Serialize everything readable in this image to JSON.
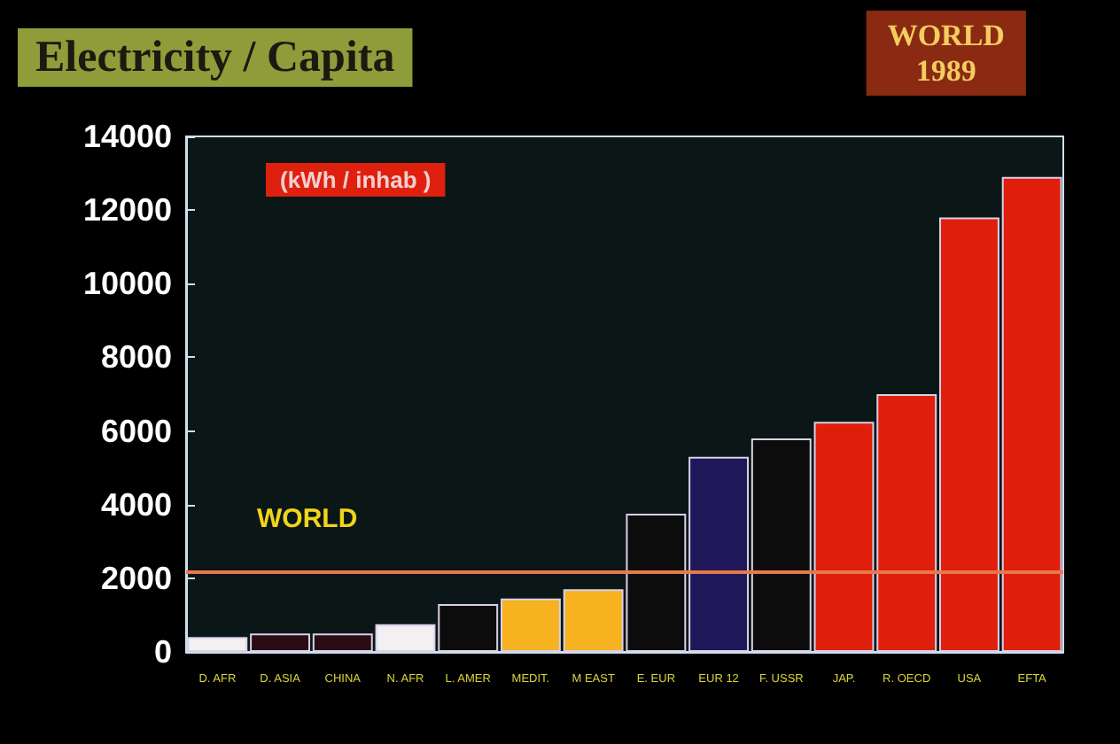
{
  "chart_data": {
    "type": "bar",
    "title": "Electricity / Capita",
    "subtitle": "WORLD\n1989",
    "ylabel": "(kWh / inhab )",
    "categories": [
      "D. AFR",
      "D. ASIA",
      "CHINA",
      "N. AFR",
      "L. AMER",
      "MEDIT.",
      "M EAST",
      "E. EUR",
      "EUR 12",
      "F. USSR",
      "JAP.",
      "R. OECD",
      "USA",
      "EFTA"
    ],
    "values": [
      400,
      500,
      500,
      750,
      1300,
      1450,
      1700,
      3750,
      5300,
      5800,
      6250,
      7000,
      11800,
      12900
    ],
    "colors": [
      "#f2f0f0",
      "#2a0c12",
      "#2a0c12",
      "#f2f0f0",
      "#0c0c0c",
      "#f7b220",
      "#f7b220",
      "#0c0c0c",
      "#1e1858",
      "#0c0c0c",
      "#e01e0c",
      "#e01e0c",
      "#e01e0c",
      "#e01e0c"
    ],
    "ylim": [
      0,
      14000
    ],
    "yticks": [
      0,
      2000,
      4000,
      6000,
      8000,
      10000,
      12000,
      14000
    ],
    "ref_lines": [
      {
        "axis": "y",
        "value": 2200,
        "label": "WORLD",
        "color": "#e8784a"
      }
    ],
    "grid": false
  }
}
